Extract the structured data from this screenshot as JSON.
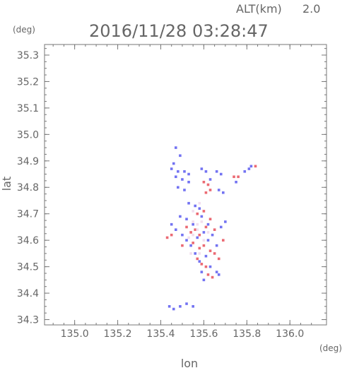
{
  "header": {
    "altitude_label": "ALT(km)",
    "altitude_value": "2.0",
    "timestamp": "2016/11/28 03:28:47"
  },
  "chart_data": {
    "type": "scatter",
    "title": "2016/11/28 03:28:47",
    "xlabel": "lon",
    "ylabel": "lat",
    "x_unit": "(deg)",
    "y_unit": "(deg)",
    "xlim": [
      134.86,
      136.17
    ],
    "ylim": [
      34.28,
      35.34
    ],
    "x_ticks": [
      "135.0",
      "135.2",
      "135.4",
      "135.6",
      "135.8",
      "136.0"
    ],
    "y_ticks": [
      "34.3",
      "34.4",
      "34.5",
      "34.6",
      "34.7",
      "34.8",
      "34.9",
      "35.0",
      "35.1",
      "35.2",
      "35.3"
    ],
    "grid": false,
    "colors": {
      "positive": "#e8505a",
      "negative": "#5a5af0",
      "axis": "#777777"
    },
    "series": [
      {
        "polarity": "negative",
        "points": [
          [
            135.47,
            34.95
          ],
          [
            135.49,
            34.92
          ],
          [
            135.46,
            34.89
          ],
          [
            135.45,
            34.87
          ],
          [
            135.48,
            34.86
          ],
          [
            135.51,
            34.86
          ],
          [
            135.53,
            34.85
          ],
          [
            135.47,
            34.84
          ],
          [
            135.5,
            34.83
          ],
          [
            135.53,
            34.82
          ],
          [
            135.48,
            34.8
          ],
          [
            135.51,
            34.79
          ],
          [
            135.59,
            34.87
          ],
          [
            135.61,
            34.86
          ],
          [
            135.63,
            34.83
          ],
          [
            135.66,
            34.86
          ],
          [
            135.68,
            34.85
          ],
          [
            135.67,
            34.79
          ],
          [
            135.69,
            34.78
          ],
          [
            135.82,
            34.88
          ],
          [
            135.81,
            34.87
          ],
          [
            135.79,
            34.86
          ],
          [
            135.75,
            34.82
          ],
          [
            135.53,
            34.74
          ],
          [
            135.56,
            34.73
          ],
          [
            135.58,
            34.72
          ],
          [
            135.49,
            34.69
          ],
          [
            135.52,
            34.68
          ],
          [
            135.55,
            34.66
          ],
          [
            135.59,
            34.69
          ],
          [
            135.62,
            34.66
          ],
          [
            135.45,
            34.66
          ],
          [
            135.47,
            34.64
          ],
          [
            135.5,
            34.62
          ],
          [
            135.52,
            34.6
          ],
          [
            135.54,
            34.58
          ],
          [
            135.57,
            34.61
          ],
          [
            135.6,
            34.63
          ],
          [
            135.62,
            34.6
          ],
          [
            135.64,
            34.62
          ],
          [
            135.66,
            34.58
          ],
          [
            135.68,
            34.65
          ],
          [
            135.7,
            34.67
          ],
          [
            135.56,
            34.55
          ],
          [
            135.58,
            34.52
          ],
          [
            135.61,
            34.54
          ],
          [
            135.63,
            34.5
          ],
          [
            135.59,
            34.48
          ],
          [
            135.66,
            34.48
          ],
          [
            135.67,
            34.47
          ],
          [
            135.6,
            34.45
          ],
          [
            135.44,
            34.35
          ],
          [
            135.46,
            34.34
          ],
          [
            135.49,
            34.35
          ],
          [
            135.52,
            34.36
          ],
          [
            135.55,
            34.35
          ]
        ]
      },
      {
        "polarity": "positive",
        "points": [
          [
            135.6,
            34.82
          ],
          [
            135.62,
            34.81
          ],
          [
            135.63,
            34.79
          ],
          [
            135.61,
            34.78
          ],
          [
            135.74,
            34.84
          ],
          [
            135.76,
            34.84
          ],
          [
            135.84,
            34.88
          ],
          [
            135.57,
            34.7
          ],
          [
            135.6,
            34.71
          ],
          [
            135.52,
            34.65
          ],
          [
            135.54,
            34.63
          ],
          [
            135.56,
            34.64
          ],
          [
            135.58,
            34.62
          ],
          [
            135.61,
            34.65
          ],
          [
            135.63,
            34.68
          ],
          [
            135.65,
            34.64
          ],
          [
            135.55,
            34.59
          ],
          [
            135.58,
            34.57
          ],
          [
            135.6,
            34.58
          ],
          [
            135.63,
            34.56
          ],
          [
            135.65,
            34.55
          ],
          [
            135.67,
            34.53
          ],
          [
            135.57,
            34.53
          ],
          [
            135.59,
            34.51
          ],
          [
            135.61,
            34.5
          ],
          [
            135.62,
            34.47
          ],
          [
            135.64,
            34.46
          ],
          [
            135.45,
            34.62
          ],
          [
            135.43,
            34.61
          ],
          [
            135.69,
            34.6
          ],
          [
            135.5,
            34.58
          ]
        ]
      },
      {
        "polarity": "neutral",
        "points": [
          [
            135.55,
            34.67
          ],
          [
            135.57,
            34.66
          ],
          [
            135.59,
            34.67
          ],
          [
            135.57,
            34.64
          ],
          [
            135.55,
            34.62
          ],
          [
            135.53,
            34.61
          ],
          [
            135.55,
            34.71
          ],
          [
            135.58,
            34.74
          ],
          [
            135.6,
            34.6
          ],
          [
            135.58,
            34.55
          ],
          [
            135.54,
            34.55
          ],
          [
            135.62,
            34.63
          ]
        ]
      }
    ]
  }
}
